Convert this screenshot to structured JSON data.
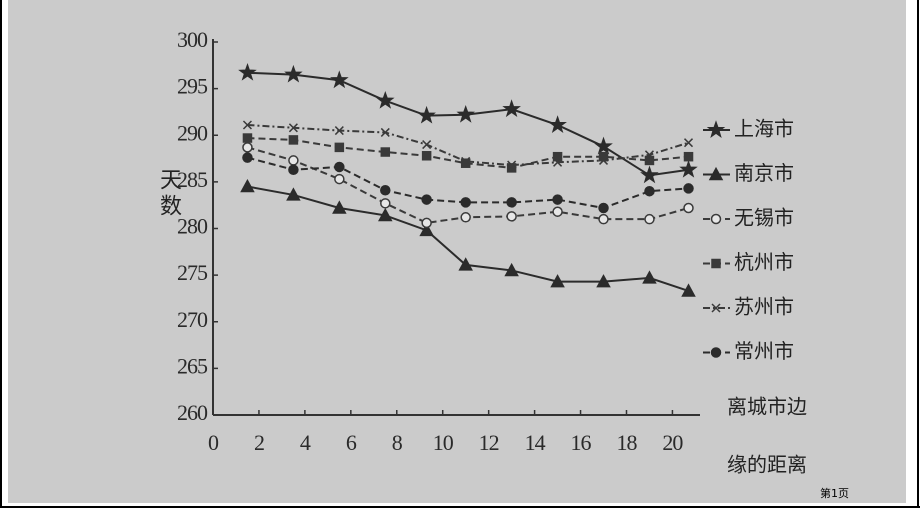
{
  "chart_data": {
    "type": "line",
    "y_label": "天数",
    "x_label": [
      "离城市边",
      "缘的距离"
    ],
    "x": [
      1.5,
      3.5,
      5.5,
      7.5,
      9.3,
      11,
      13,
      15,
      17,
      19,
      20.7
    ],
    "xlim": [
      0,
      21.2
    ],
    "xticks": [
      0,
      2,
      4,
      6,
      8,
      10,
      12,
      14,
      16,
      18,
      20
    ],
    "ylim": [
      260,
      300
    ],
    "yticks": [
      260,
      265,
      270,
      275,
      280,
      285,
      290,
      295,
      300
    ],
    "series": [
      {
        "name": "上海市",
        "color": "#2b2b2b",
        "marker": "star",
        "dash": "solid",
        "values": [
          296.7,
          296.5,
          295.9,
          293.7,
          292.1,
          292.2,
          292.8,
          291.1,
          288.8,
          285.7,
          286.3
        ]
      },
      {
        "name": "南京市",
        "color": "#2b2b2b",
        "marker": "triangle",
        "dash": "solid",
        "values": [
          284.5,
          283.6,
          282.2,
          281.4,
          279.8,
          276.1,
          275.5,
          274.3,
          274.3,
          274.7,
          273.3
        ]
      },
      {
        "name": "无锡市",
        "color": "#3a3a3a",
        "marker": "open-circle",
        "dash": "dashed",
        "values": [
          288.7,
          287.3,
          285.3,
          282.7,
          280.6,
          281.2,
          281.3,
          281.8,
          281.0,
          281.0,
          282.2
        ]
      },
      {
        "name": "杭州市",
        "color": "#3a3a3a",
        "marker": "square",
        "dash": "dashed",
        "values": [
          289.7,
          289.5,
          288.7,
          288.2,
          287.8,
          287.0,
          286.5,
          287.7,
          287.7,
          287.3,
          287.7
        ]
      },
      {
        "name": "苏州市",
        "color": "#3a3a3a",
        "marker": "cross",
        "dash": "dashdot",
        "values": [
          291.1,
          290.8,
          290.5,
          290.3,
          289.0,
          287.2,
          286.8,
          287.1,
          287.3,
          287.9,
          289.2
        ]
      },
      {
        "name": "常州市",
        "color": "#2b2b2b",
        "marker": "dot",
        "dash": "dashed",
        "values": [
          287.6,
          286.3,
          286.6,
          284.1,
          283.1,
          282.8,
          282.8,
          283.1,
          282.2,
          284.0,
          284.3
        ]
      }
    ]
  },
  "footer": {
    "page": "第1页"
  }
}
